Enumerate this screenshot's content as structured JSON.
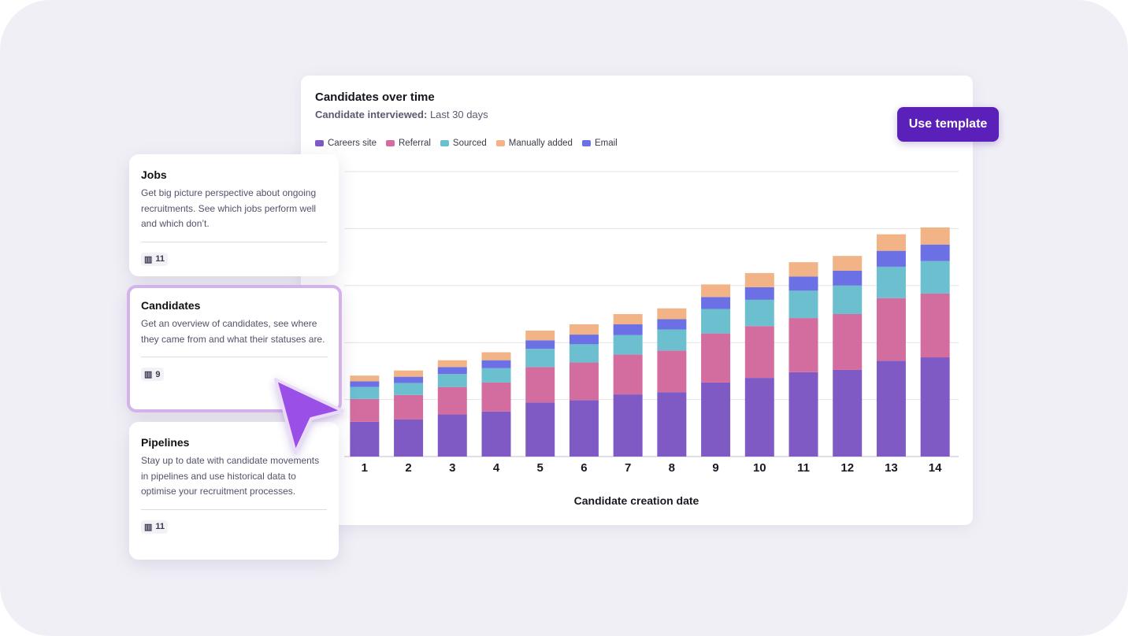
{
  "chart_card": {
    "title": "Candidates over time",
    "subtitle_label": "Candidate interviewed:",
    "subtitle_value": "Last 30 days",
    "use_template_label": "Use template"
  },
  "cards": [
    {
      "title": "Jobs",
      "description": "Get big picture perspective about ongoing recruitments. See which jobs perform well and which don’t.",
      "count": "11",
      "icon": "bar-chart-icon"
    },
    {
      "title": "Candidates",
      "description": "Get an overview of candidates, see where they came from and what their statuses are.",
      "count": "9",
      "icon": "bar-chart-icon"
    },
    {
      "title": "Pipelines",
      "description": "Stay up to date with candidate movements in pipelines and use historical data to optimise your recruitment processes.",
      "count": "11",
      "icon": "bar-chart-icon"
    }
  ],
  "colors": {
    "accent": "#5b20b9",
    "cursor": "#9a4fe6",
    "active_border": "#d4b2ea"
  },
  "chart_data": {
    "type": "bar",
    "stacked": true,
    "xlabel": "Candidate creation date",
    "ylabel": "",
    "ylim": [
      0,
      50
    ],
    "grid": true,
    "legend": "top-left",
    "categories": [
      "1",
      "2",
      "3",
      "4",
      "5",
      "6",
      "7",
      "8",
      "9",
      "10",
      "11",
      "12",
      "13",
      "14"
    ],
    "series": [
      {
        "name": "Careers site",
        "color": "#805ac4",
        "values": [
          6.1,
          6.5,
          7.4,
          7.9,
          9.5,
          9.9,
          10.9,
          11.3,
          13.0,
          13.8,
          14.8,
          15.2,
          16.8,
          17.4
        ]
      },
      {
        "name": "Referral",
        "color": "#d46d9f",
        "values": [
          4.0,
          4.3,
          4.8,
          5.1,
          6.2,
          6.6,
          7.0,
          7.3,
          8.6,
          9.1,
          9.5,
          9.8,
          11.0,
          11.2
        ]
      },
      {
        "name": "Sourced",
        "color": "#6bbfcf",
        "values": [
          2.1,
          2.1,
          2.3,
          2.5,
          3.2,
          3.2,
          3.4,
          3.7,
          4.3,
          4.6,
          4.8,
          5.0,
          5.5,
          5.7
        ]
      },
      {
        "name": "Email",
        "color": "#6b71e4",
        "values": [
          1.0,
          1.1,
          1.2,
          1.4,
          1.5,
          1.7,
          1.9,
          1.8,
          2.1,
          2.2,
          2.5,
          2.6,
          2.8,
          2.9
        ]
      },
      {
        "name": "Manually added",
        "color": "#f2b386",
        "values": [
          1.0,
          1.1,
          1.2,
          1.4,
          1.7,
          1.8,
          1.8,
          1.9,
          2.2,
          2.5,
          2.5,
          2.6,
          2.9,
          3.0
        ]
      }
    ],
    "legend_order": [
      "Careers site",
      "Referral",
      "Sourced",
      "Manually added",
      "Email"
    ]
  }
}
